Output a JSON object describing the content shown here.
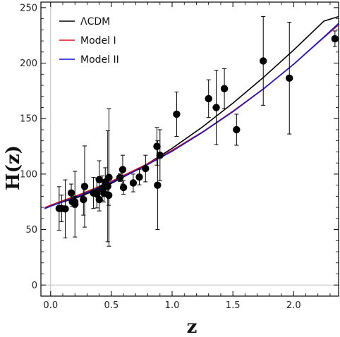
{
  "chart_data": {
    "type": "scatter",
    "xlabel": "z",
    "ylabel": "H(z)",
    "xlim": [
      -0.08,
      2.37
    ],
    "ylim": [
      -10,
      255
    ],
    "x_ticks": [
      0.0,
      0.5,
      1.0,
      1.5,
      2.0
    ],
    "x_tick_labels": [
      "0.0",
      "0.5",
      "1.0",
      "1.5",
      "2.0"
    ],
    "y_ticks": [
      0,
      50,
      100,
      150,
      200,
      250
    ],
    "y_tick_labels": [
      "0",
      "50",
      "100",
      "150",
      "200",
      "250"
    ],
    "grid": false,
    "reference_lines": {
      "x": 0,
      "y": 0,
      "color": "#bbbbbb"
    },
    "legend_position": "top-left",
    "legend": [
      {
        "label": "ΛCDM",
        "color": "#000000"
      },
      {
        "label": "Model I",
        "color": "#dd1111"
      },
      {
        "label": "Model II",
        "color": "#1111dd"
      }
    ],
    "points": [
      {
        "z": 0.07,
        "H": 69,
        "err": 19.6
      },
      {
        "z": 0.09,
        "H": 69,
        "err": 12
      },
      {
        "z": 0.12,
        "H": 68.6,
        "err": 26.2
      },
      {
        "z": 0.17,
        "H": 83,
        "err": 8
      },
      {
        "z": 0.179,
        "H": 75,
        "err": 4
      },
      {
        "z": 0.199,
        "H": 75,
        "err": 5
      },
      {
        "z": 0.2,
        "H": 72.9,
        "err": 29.6
      },
      {
        "z": 0.27,
        "H": 77,
        "err": 14
      },
      {
        "z": 0.28,
        "H": 88.8,
        "err": 36.6
      },
      {
        "z": 0.352,
        "H": 83,
        "err": 14
      },
      {
        "z": 0.38,
        "H": 81.9,
        "err": 1.9
      },
      {
        "z": 0.3802,
        "H": 83,
        "err": 13.5
      },
      {
        "z": 0.4,
        "H": 95,
        "err": 17
      },
      {
        "z": 0.4004,
        "H": 77,
        "err": 10.2
      },
      {
        "z": 0.4247,
        "H": 87.1,
        "err": 11.2
      },
      {
        "z": 0.43,
        "H": 86.5,
        "err": 3.7
      },
      {
        "z": 0.44,
        "H": 82.6,
        "err": 7.8
      },
      {
        "z": 0.4497,
        "H": 92.8,
        "err": 12.9
      },
      {
        "z": 0.47,
        "H": 89,
        "err": 50
      },
      {
        "z": 0.4783,
        "H": 80.9,
        "err": 9
      },
      {
        "z": 0.48,
        "H": 97,
        "err": 62
      },
      {
        "z": 0.57,
        "H": 96.8,
        "err": 3.4
      },
      {
        "z": 0.593,
        "H": 104,
        "err": 13
      },
      {
        "z": 0.6,
        "H": 87.9,
        "err": 6.1
      },
      {
        "z": 0.68,
        "H": 92,
        "err": 8
      },
      {
        "z": 0.73,
        "H": 97.3,
        "err": 7
      },
      {
        "z": 0.781,
        "H": 105,
        "err": 12
      },
      {
        "z": 0.875,
        "H": 125,
        "err": 17
      },
      {
        "z": 0.88,
        "H": 90,
        "err": 40
      },
      {
        "z": 0.9,
        "H": 117,
        "err": 23
      },
      {
        "z": 1.037,
        "H": 154,
        "err": 20
      },
      {
        "z": 1.3,
        "H": 168,
        "err": 17
      },
      {
        "z": 1.363,
        "H": 160,
        "err": 33.6
      },
      {
        "z": 1.43,
        "H": 177,
        "err": 18
      },
      {
        "z": 1.53,
        "H": 140,
        "err": 14
      },
      {
        "z": 1.75,
        "H": 202,
        "err": 40
      },
      {
        "z": 1.965,
        "H": 186.5,
        "err": 50.4
      },
      {
        "z": 2.34,
        "H": 222,
        "err": 7
      }
    ],
    "series": [
      {
        "name": "ΛCDM",
        "color": "#000000",
        "x": [
          -0.05,
          0.0,
          0.25,
          0.5,
          0.75,
          1.0,
          1.25,
          1.5,
          1.75,
          2.0,
          2.25,
          2.37
        ],
        "y": [
          69.4,
          71.5,
          80.0,
          91.6,
          106.1,
          123.2,
          142.5,
          163.9,
          187.0,
          211.8,
          238.0,
          242.0
        ]
      },
      {
        "name": "Model I",
        "color": "#dd1111",
        "x": [
          -0.05,
          0.0,
          0.25,
          0.5,
          0.75,
          1.0,
          1.25,
          1.5,
          1.75,
          2.0,
          2.25,
          2.37
        ],
        "y": [
          69.7,
          72.0,
          82.0,
          93.5,
          106.7,
          121.4,
          138.0,
          156.6,
          176.8,
          199.0,
          223.2,
          234.5
        ]
      },
      {
        "name": "Model II",
        "color": "#1111dd",
        "x": [
          -0.05,
          0.0,
          0.25,
          0.5,
          0.75,
          1.0,
          1.25,
          1.5,
          1.75,
          2.0,
          2.25,
          2.37
        ],
        "y": [
          68.8,
          71.0,
          81.0,
          92.5,
          105.7,
          120.6,
          137.6,
          156.2,
          176.6,
          199.0,
          223.6,
          235.8
        ]
      }
    ]
  }
}
